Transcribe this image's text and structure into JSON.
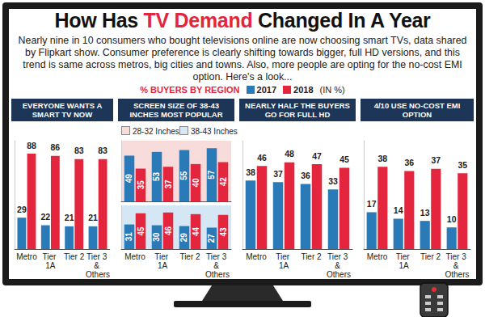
{
  "header": {
    "title": "How Has TV Demand Changed In A Year",
    "title_highlight": "TV Demand",
    "subtitle": "Nearly nine in 10 consumers who bought televisions online are now choosing smart TVs, data shared by Flipkart show. Consumer preference is clearly shifting towards bigger, full HD versions, and this trend is same across metros, big cities and towns. Also, more people are opting for the no-cost EMI option. Here's a look...",
    "legend_title": "% BUYERS BY REGION",
    "unit": "(IN %)"
  },
  "chart_data": [
    {
      "type": "bar",
      "title": "EVERYONE WANTS A SMART TV NOW",
      "categories": [
        "Metro",
        "Tier 1A",
        "Tier 2",
        "Tier 3 & Others"
      ],
      "series": [
        {
          "name": "2017",
          "color": "#2a7ab8",
          "values": [
            29,
            22,
            21,
            21
          ]
        },
        {
          "name": "2018",
          "color": "#e3253d",
          "values": [
            88,
            86,
            83,
            83
          ]
        }
      ],
      "ylim": [
        0,
        100
      ],
      "grid": false,
      "data_labels": true,
      "tick_labels": "x"
    },
    {
      "type": "bar",
      "title": "SCREEN SIZE OF 38-43 INCHES MOST POPULAR",
      "subtitle": "28-32 Inches",
      "categories": [
        "Metro",
        "Tier 1A",
        "Tier 2",
        "Tier 3 & Others"
      ],
      "series": [
        {
          "name": "2017",
          "color": "#2a7ab8",
          "values": [
            49,
            53,
            55,
            57
          ]
        },
        {
          "name": "2018",
          "color": "#e3253d",
          "values": [
            35,
            37,
            40,
            42
          ]
        }
      ],
      "ylim": [
        0,
        65
      ],
      "grid": false,
      "data_labels": true,
      "tick_labels": false
    },
    {
      "type": "bar",
      "subtitle": "38-43 Inches",
      "categories": [
        "Metro",
        "Tier 1A",
        "Tier 2",
        "Tier 3 & Others"
      ],
      "series": [
        {
          "name": "2017",
          "color": "#2a7ab8",
          "values": [
            31,
            30,
            29,
            27
          ]
        },
        {
          "name": "2018",
          "color": "#e3253d",
          "values": [
            45,
            46,
            44,
            43
          ]
        }
      ],
      "ylim": [
        0,
        55
      ],
      "grid": false,
      "data_labels": true,
      "tick_labels": "x"
    },
    {
      "type": "bar",
      "title": "NEARLY HALF THE BUYERS GO FOR FULL HD",
      "categories": [
        "Metro",
        "Tier 1A",
        "Tier 2",
        "Tier 3 & Others"
      ],
      "series": [
        {
          "name": "2017",
          "color": "#2a7ab8",
          "values": [
            38,
            37,
            36,
            33
          ]
        },
        {
          "name": "2018",
          "color": "#e3253d",
          "values": [
            46,
            48,
            47,
            45
          ]
        }
      ],
      "ylim": [
        0,
        60
      ],
      "grid": false,
      "data_labels": true,
      "tick_labels": "x"
    },
    {
      "type": "bar",
      "title": "4/10 USE NO-COST EMI OPTION",
      "categories": [
        "Metro",
        "Tier 1A",
        "Tier 2",
        "Tier 3 & Others"
      ],
      "series": [
        {
          "name": "2017",
          "color": "#2a7ab8",
          "values": [
            17,
            14,
            13,
            10
          ]
        },
        {
          "name": "2018",
          "color": "#e3253d",
          "values": [
            38,
            36,
            37,
            35
          ]
        }
      ],
      "ylim": [
        0,
        50
      ],
      "grid": false,
      "data_labels": true,
      "tick_labels": "x"
    }
  ]
}
